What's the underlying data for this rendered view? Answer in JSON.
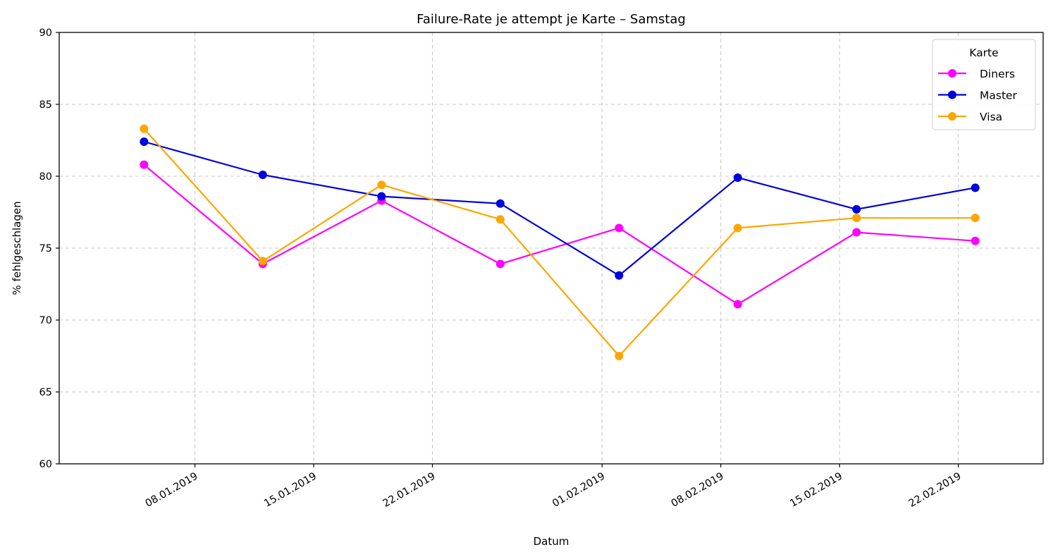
{
  "chart_data": {
    "type": "line",
    "title": "Failure-Rate je attempt je Karte – Samstag",
    "xlabel": "Datum",
    "ylabel": "% fehlgeschlagen",
    "ylim": [
      60,
      90
    ],
    "yticks": [
      60,
      65,
      70,
      75,
      80,
      85,
      90
    ],
    "xlim": [
      "2018-12-31",
      "2019-02-27"
    ],
    "xticks": [
      {
        "date": "2019-01-08",
        "label": "08.01.2019"
      },
      {
        "date": "2019-01-15",
        "label": "15.01.2019"
      },
      {
        "date": "2019-01-22",
        "label": "22.01.2019"
      },
      {
        "date": "2019-02-01",
        "label": "01.02.2019"
      },
      {
        "date": "2019-02-08",
        "label": "08.02.2019"
      },
      {
        "date": "2019-02-15",
        "label": "15.02.2019"
      },
      {
        "date": "2019-02-22",
        "label": "22.02.2019"
      }
    ],
    "x": [
      "2019-01-05",
      "2019-01-12",
      "2019-01-19",
      "2019-01-26",
      "2019-02-02",
      "2019-02-09",
      "2019-02-16",
      "2019-02-23"
    ],
    "grid": true,
    "legend": {
      "title": "Karte",
      "placement": "top-right"
    },
    "series": [
      {
        "name": "Diners",
        "color": "#ff00ff",
        "values": [
          80.8,
          73.9,
          78.3,
          73.9,
          76.4,
          71.1,
          76.1,
          75.5
        ]
      },
      {
        "name": "Master",
        "color": "#0000dd",
        "values": [
          82.4,
          80.1,
          78.6,
          78.1,
          73.1,
          79.9,
          77.7,
          79.2
        ]
      },
      {
        "name": "Visa",
        "color": "#ffa500",
        "values": [
          83.3,
          74.1,
          79.4,
          77.0,
          67.5,
          76.4,
          77.1,
          77.1
        ]
      }
    ]
  }
}
